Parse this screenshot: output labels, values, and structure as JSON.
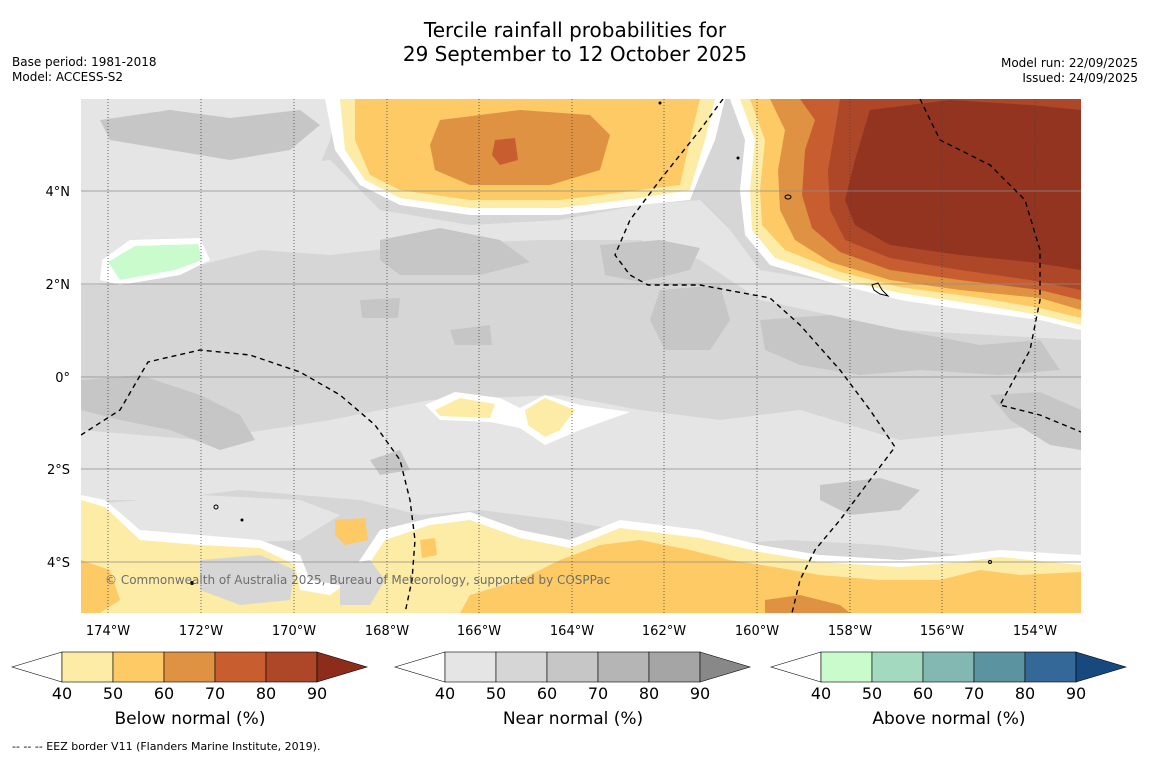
{
  "title": {
    "line1": "Tercile rainfall probabilities for",
    "line2": "29 September to 12 October 2025"
  },
  "meta_left": {
    "base_period": "Base period: 1981-2018",
    "model": "Model: ACCESS-S2"
  },
  "meta_right": {
    "model_run": "Model run: 22/09/2025",
    "issued": "Issued: 24/09/2025"
  },
  "map": {
    "lat_labels": [
      "4°N",
      "2°N",
      "0°",
      "2°S",
      "4°S"
    ],
    "lon_labels": [
      "174°W",
      "172°W",
      "170°W",
      "168°W",
      "166°W",
      "164°W",
      "162°W",
      "160°W",
      "158°W",
      "156°W",
      "154°W"
    ],
    "lat_range": [
      -5.1,
      6.0
    ],
    "lon_range": [
      -174.6,
      -153.1
    ],
    "copyright": "© Commonwealth of Australia 2025, Bureau of Meteorology, supported by COSPPac"
  },
  "colorbars": [
    {
      "title": "Below normal (%)",
      "ticks": [
        "40",
        "50",
        "60",
        "70",
        "80",
        "90"
      ],
      "colors": [
        "#fdeca6",
        "#fdca65",
        "#de9242",
        "#c85e30",
        "#ae4628",
        "#8e2c1c"
      ]
    },
    {
      "title": "Near normal (%)",
      "ticks": [
        "40",
        "50",
        "60",
        "70",
        "80",
        "90"
      ],
      "colors": [
        "#e5e5e5",
        "#d6d6d6",
        "#c6c6c6",
        "#b5b5b5",
        "#a5a5a5",
        "#888888"
      ]
    },
    {
      "title": "Above normal (%)",
      "ticks": [
        "40",
        "50",
        "60",
        "70",
        "80",
        "90"
      ],
      "colors": [
        "#c9fbcd",
        "#a2d9bf",
        "#83b8b2",
        "#5b93a0",
        "#336898",
        "#17497f"
      ]
    }
  ],
  "footnote": "--  --  -- EEZ border V11 (Flanders Marine Institute, 2019).",
  "colors": {
    "below_40_50": "#fdeca6",
    "below_50_60": "#fdca65",
    "below_60_70": "#de9242",
    "below_70_80": "#c85e30",
    "below_80_90": "#ae4628",
    "below_90": "#923420",
    "near_40_50": "#e5e5e5",
    "near_50_60": "#d6d6d6",
    "near_60_70": "#c6c6c6",
    "above_40_50": "#c9fbcd"
  }
}
